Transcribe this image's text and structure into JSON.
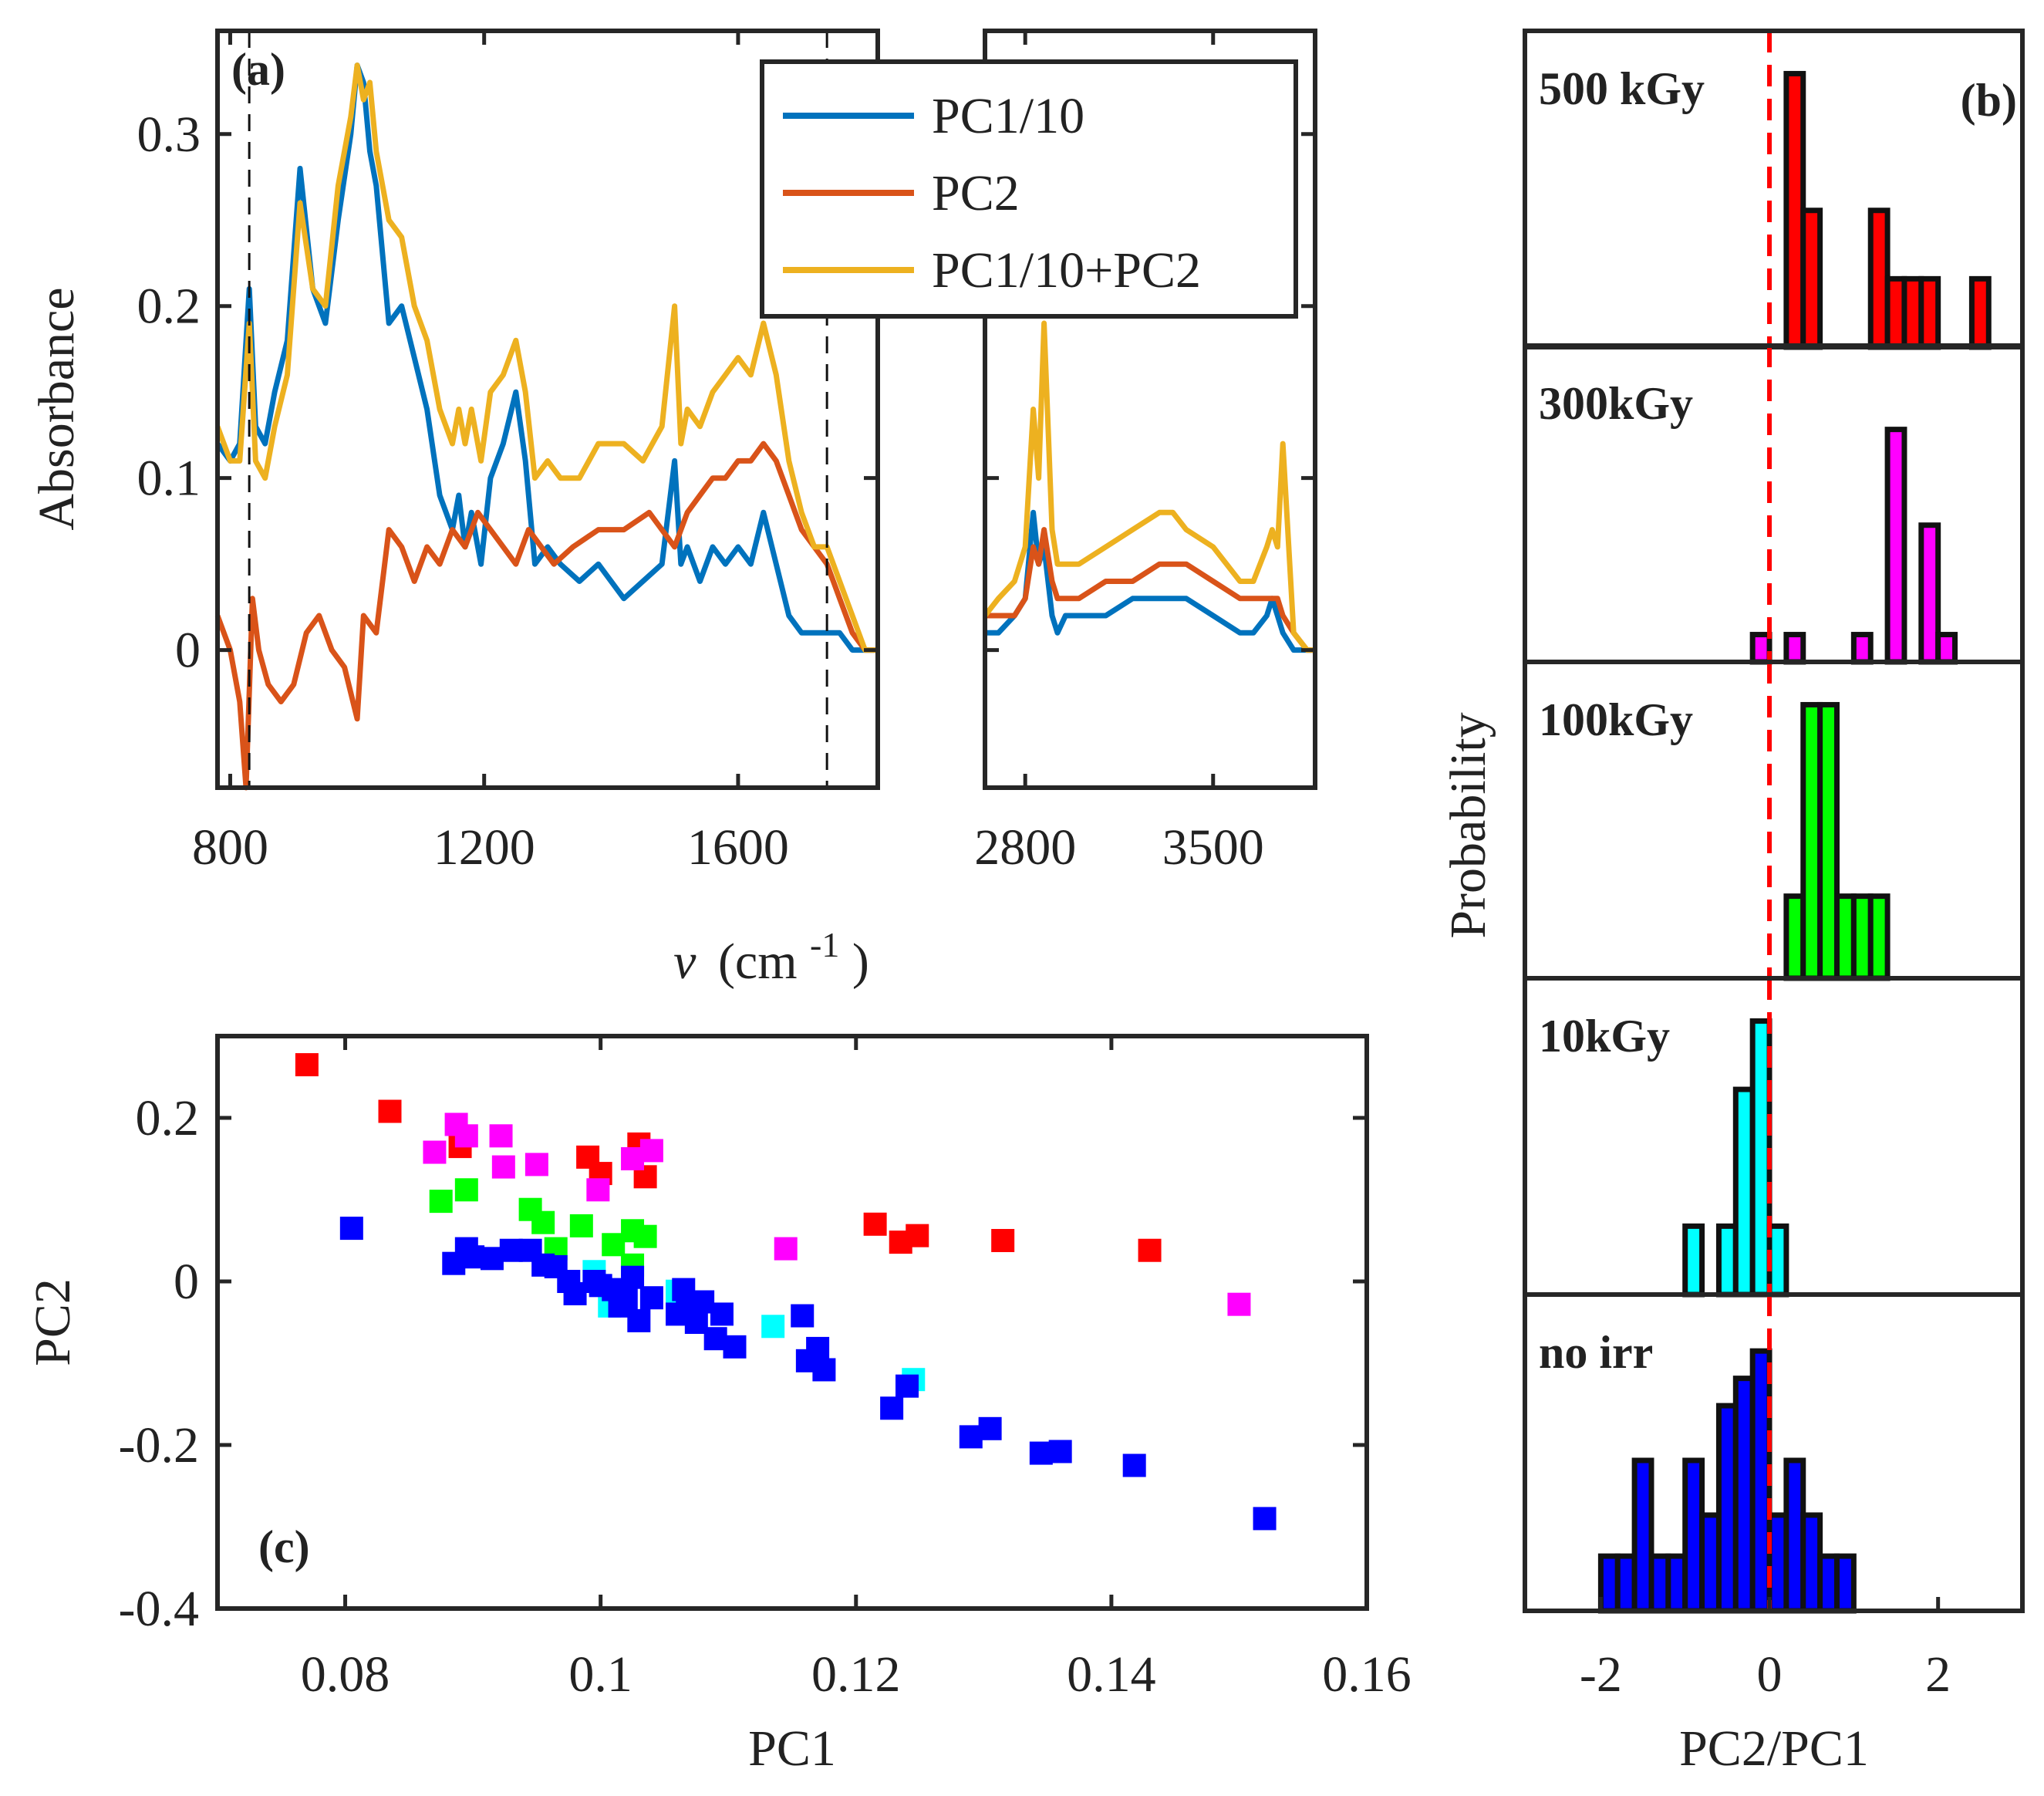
{
  "colors": {
    "pc1": "#0072BD",
    "pc2": "#D95319",
    "sum": "#EDB120",
    "500kGy": "#FF0000",
    "300kGy": "#FF00FF",
    "100kGy": "#00FF00",
    "10kGy": "#00FFFF",
    "noirr": "#0000FF",
    "frame": "#262626"
  },
  "chart_data": [
    {
      "id": "a",
      "type": "line",
      "panel_label": "(a)",
      "ylabel": "Absorbance",
      "xlabel_symbol": "ν",
      "xlabel_unit": "(cm",
      "xlabel_exp": "-1",
      "xlabel_close": ")",
      "ylim": [
        -0.08,
        0.36
      ],
      "xlim_left": [
        780,
        1820
      ],
      "xlim_right": [
        2650,
        3880
      ],
      "yticks": [
        0,
        0.1,
        0.2,
        0.3
      ],
      "ytick_labels": [
        "0",
        "0.1",
        "0.2",
        "0.3"
      ],
      "xticks_left": [
        800,
        1200,
        1600
      ],
      "xtick_labels_left": [
        "800",
        "1200",
        "1600"
      ],
      "xticks_right": [
        2800,
        3500
      ],
      "xtick_labels_right": [
        "2800",
        "3500"
      ],
      "vlines": [
        830,
        1740
      ],
      "legend_placement": "top-right",
      "series": [
        {
          "name": "PC1/10",
          "color_key": "pc1",
          "x_left": [
            780,
            800,
            815,
            830,
            840,
            855,
            870,
            890,
            910,
            930,
            950,
            970,
            990,
            1000,
            1010,
            1020,
            1030,
            1050,
            1070,
            1090,
            1110,
            1130,
            1150,
            1160,
            1170,
            1180,
            1195,
            1210,
            1230,
            1250,
            1265,
            1280,
            1300,
            1320,
            1350,
            1380,
            1420,
            1450,
            1480,
            1500,
            1510,
            1520,
            1540,
            1560,
            1580,
            1600,
            1620,
            1640,
            1660,
            1680,
            1700,
            1720,
            1740,
            1760,
            1780,
            1800,
            1820
          ],
          "y_left": [
            0.12,
            0.11,
            0.12,
            0.21,
            0.13,
            0.12,
            0.15,
            0.18,
            0.28,
            0.21,
            0.19,
            0.25,
            0.3,
            0.34,
            0.33,
            0.29,
            0.27,
            0.19,
            0.2,
            0.17,
            0.14,
            0.09,
            0.07,
            0.09,
            0.06,
            0.08,
            0.05,
            0.1,
            0.12,
            0.15,
            0.11,
            0.05,
            0.06,
            0.05,
            0.04,
            0.05,
            0.03,
            0.04,
            0.05,
            0.11,
            0.05,
            0.06,
            0.04,
            0.06,
            0.05,
            0.06,
            0.05,
            0.08,
            0.05,
            0.02,
            0.01,
            0.01,
            0.01,
            0.01,
            0.0,
            0.0,
            0.0
          ],
          "x_right": [
            2650,
            2700,
            2760,
            2800,
            2830,
            2850,
            2870,
            2900,
            2920,
            2950,
            3000,
            3100,
            3200,
            3300,
            3350,
            3400,
            3500,
            3600,
            3650,
            3700,
            3720,
            3740,
            3760,
            3800,
            3850,
            3880
          ],
          "y_right": [
            0.01,
            0.01,
            0.02,
            0.03,
            0.08,
            0.05,
            0.06,
            0.02,
            0.01,
            0.02,
            0.02,
            0.02,
            0.03,
            0.03,
            0.03,
            0.03,
            0.02,
            0.01,
            0.01,
            0.02,
            0.03,
            0.02,
            0.01,
            0.0,
            0.0,
            0.0
          ]
        },
        {
          "name": "PC2",
          "color_key": "pc2",
          "x_left": [
            780,
            800,
            815,
            825,
            835,
            845,
            860,
            880,
            900,
            920,
            940,
            960,
            980,
            1000,
            1010,
            1030,
            1050,
            1070,
            1090,
            1110,
            1130,
            1150,
            1170,
            1190,
            1210,
            1230,
            1250,
            1270,
            1290,
            1310,
            1340,
            1380,
            1420,
            1460,
            1500,
            1520,
            1540,
            1560,
            1580,
            1600,
            1620,
            1640,
            1660,
            1680,
            1700,
            1720,
            1740,
            1760,
            1780,
            1800,
            1820
          ],
          "y_left": [
            0.02,
            0.0,
            -0.03,
            -0.08,
            0.03,
            0.0,
            -0.02,
            -0.03,
            -0.02,
            0.01,
            0.02,
            0.0,
            -0.01,
            -0.04,
            0.02,
            0.01,
            0.07,
            0.06,
            0.04,
            0.06,
            0.05,
            0.07,
            0.06,
            0.08,
            0.07,
            0.06,
            0.05,
            0.07,
            0.06,
            0.05,
            0.06,
            0.07,
            0.07,
            0.08,
            0.06,
            0.08,
            0.09,
            0.1,
            0.1,
            0.11,
            0.11,
            0.12,
            0.11,
            0.09,
            0.07,
            0.06,
            0.05,
            0.03,
            0.01,
            0.0,
            0.0
          ],
          "x_right": [
            2650,
            2700,
            2760,
            2800,
            2830,
            2850,
            2870,
            2900,
            2920,
            2950,
            3000,
            3100,
            3200,
            3300,
            3350,
            3400,
            3500,
            3600,
            3650,
            3700,
            3720,
            3740,
            3760,
            3800,
            3850,
            3880
          ],
          "y_right": [
            0.02,
            0.02,
            0.02,
            0.03,
            0.06,
            0.05,
            0.07,
            0.04,
            0.03,
            0.03,
            0.03,
            0.04,
            0.04,
            0.05,
            0.05,
            0.05,
            0.04,
            0.03,
            0.03,
            0.03,
            0.03,
            0.03,
            0.02,
            0.01,
            0.0,
            0.0
          ]
        },
        {
          "name": "PC1/10+PC2",
          "color_key": "sum",
          "x_left": [
            780,
            800,
            815,
            830,
            840,
            855,
            870,
            890,
            910,
            930,
            950,
            970,
            990,
            1000,
            1010,
            1020,
            1030,
            1050,
            1070,
            1090,
            1110,
            1130,
            1150,
            1160,
            1170,
            1180,
            1195,
            1210,
            1230,
            1250,
            1265,
            1280,
            1300,
            1320,
            1350,
            1380,
            1420,
            1450,
            1480,
            1500,
            1510,
            1520,
            1540,
            1560,
            1580,
            1600,
            1620,
            1640,
            1660,
            1680,
            1700,
            1720,
            1740,
            1760,
            1780,
            1800,
            1820
          ],
          "y_left": [
            0.13,
            0.11,
            0.11,
            0.19,
            0.11,
            0.1,
            0.13,
            0.16,
            0.26,
            0.21,
            0.2,
            0.27,
            0.31,
            0.34,
            0.32,
            0.33,
            0.29,
            0.25,
            0.24,
            0.2,
            0.18,
            0.14,
            0.12,
            0.14,
            0.12,
            0.14,
            0.11,
            0.15,
            0.16,
            0.18,
            0.15,
            0.1,
            0.11,
            0.1,
            0.1,
            0.12,
            0.12,
            0.11,
            0.13,
            0.2,
            0.12,
            0.14,
            0.13,
            0.15,
            0.16,
            0.17,
            0.16,
            0.19,
            0.16,
            0.11,
            0.08,
            0.06,
            0.06,
            0.04,
            0.02,
            0.0,
            0.0
          ],
          "x_right": [
            2650,
            2700,
            2760,
            2800,
            2830,
            2850,
            2870,
            2900,
            2920,
            2950,
            3000,
            3100,
            3200,
            3300,
            3350,
            3400,
            3500,
            3600,
            3650,
            3700,
            3720,
            3740,
            3760,
            3800,
            3850,
            3880
          ],
          "y_right": [
            0.02,
            0.03,
            0.04,
            0.06,
            0.14,
            0.1,
            0.19,
            0.07,
            0.05,
            0.05,
            0.05,
            0.06,
            0.07,
            0.08,
            0.08,
            0.07,
            0.06,
            0.04,
            0.04,
            0.06,
            0.07,
            0.06,
            0.12,
            0.01,
            0.0,
            0.0
          ]
        }
      ]
    },
    {
      "id": "b",
      "type": "bar",
      "panel_label": "(b)",
      "ylabel": "Probability",
      "xlabel": "PC2/PC1",
      "xlim": [
        -2.9,
        3.0
      ],
      "xticks": [
        -2,
        0,
        2
      ],
      "xtick_labels": [
        "-2",
        "0",
        "2"
      ],
      "bin_width": 0.2,
      "dashed_line_x": 0,
      "panels": [
        {
          "label": "500 kGy",
          "color_key": "500kGy",
          "ymax": 0.22,
          "centers": [
            0.3,
            0.5,
            1.3,
            1.5,
            1.7,
            1.9,
            2.5
          ],
          "values": [
            0.2,
            0.1,
            0.1,
            0.05,
            0.05,
            0.05,
            0.05
          ]
        },
        {
          "label": "300kGy",
          "color_key": "300kGy",
          "ymax": 0.22,
          "centers": [
            -0.1,
            0.3,
            1.1,
            1.5,
            1.9,
            2.1
          ],
          "values": [
            0.02,
            0.02,
            0.02,
            0.17,
            0.1,
            0.02
          ]
        },
        {
          "label": "100kGy",
          "color_key": "100kGy",
          "ymax": 0.22,
          "centers": [
            0.3,
            0.5,
            0.7,
            0.9,
            1.1,
            1.3
          ],
          "values": [
            0.06,
            0.2,
            0.2,
            0.06,
            0.06,
            0.06
          ]
        },
        {
          "label": "10kGy",
          "color_key": "10kGy",
          "ymax": 0.22,
          "centers": [
            -0.9,
            -0.5,
            -0.3,
            -0.1,
            0.1
          ],
          "values": [
            0.05,
            0.05,
            0.15,
            0.2,
            0.05
          ]
        },
        {
          "label": "no irr",
          "color_key": "noirr",
          "ymax": 0.22,
          "centers": [
            -1.9,
            -1.7,
            -1.5,
            -1.3,
            -1.1,
            -0.9,
            -0.7,
            -0.5,
            -0.3,
            -0.1,
            0.1,
            0.3,
            0.5,
            0.7,
            0.9
          ],
          "values": [
            0.04,
            0.04,
            0.11,
            0.04,
            0.04,
            0.11,
            0.07,
            0.15,
            0.17,
            0.19,
            0.07,
            0.11,
            0.07,
            0.04,
            0.04
          ]
        }
      ]
    },
    {
      "id": "c",
      "type": "scatter",
      "panel_label": "(c)",
      "xlabel": "PC1",
      "ylabel": "PC2",
      "xlim": [
        0.07,
        0.16
      ],
      "ylim": [
        -0.4,
        0.3
      ],
      "xticks": [
        0.08,
        0.1,
        0.12,
        0.14,
        0.16
      ],
      "xtick_labels": [
        "0.08",
        "0.1",
        "0.12",
        "0.14",
        "0.16"
      ],
      "yticks": [
        -0.4,
        -0.2,
        0,
        0.2
      ],
      "ytick_labels": [
        "-0.4",
        "-0.2",
        "0",
        "0.2"
      ],
      "series": [
        {
          "color_key": "500kGy",
          "points": [
            [
              0.077,
              0.265
            ],
            [
              0.0835,
              0.208
            ],
            [
              0.089,
              0.165
            ],
            [
              0.099,
              0.152
            ],
            [
              0.1,
              0.132
            ],
            [
              0.103,
              0.168
            ],
            [
              0.1035,
              0.128
            ],
            [
              0.1215,
              0.07
            ],
            [
              0.1235,
              0.048
            ],
            [
              0.1248,
              0.056
            ],
            [
              0.1315,
              0.05
            ],
            [
              0.143,
              0.038
            ]
          ]
        },
        {
          "color_key": "300kGy",
          "points": [
            [
              0.087,
              0.158
            ],
            [
              0.0887,
              0.192
            ],
            [
              0.0895,
              0.178
            ],
            [
              0.0922,
              0.178
            ],
            [
              0.0924,
              0.14
            ],
            [
              0.095,
              0.143
            ],
            [
              0.0998,
              0.112
            ],
            [
              0.1025,
              0.15
            ],
            [
              0.104,
              0.16
            ],
            [
              0.1145,
              0.04
            ],
            [
              0.15,
              -0.028
            ]
          ]
        },
        {
          "color_key": "100kGy",
          "points": [
            [
              0.0875,
              0.098
            ],
            [
              0.0895,
              0.112
            ],
            [
              0.0945,
              0.088
            ],
            [
              0.0955,
              0.072
            ],
            [
              0.0965,
              0.04
            ],
            [
              0.0985,
              0.068
            ],
            [
              0.101,
              0.045
            ],
            [
              0.1025,
              0.062
            ],
            [
              0.1035,
              0.055
            ],
            [
              0.1025,
              0.02
            ]
          ]
        },
        {
          "color_key": "10kGy",
          "points": [
            [
              0.0995,
              0.012
            ],
            [
              0.1007,
              -0.03
            ],
            [
              0.106,
              -0.012
            ],
            [
              0.1135,
              -0.055
            ],
            [
              0.1245,
              -0.12
            ]
          ]
        },
        {
          "color_key": "noirr",
          "points": [
            [
              0.0805,
              0.065
            ],
            [
              0.0885,
              0.022
            ],
            [
              0.0895,
              0.04
            ],
            [
              0.09,
              0.03
            ],
            [
              0.0915,
              0.028
            ],
            [
              0.093,
              0.038
            ],
            [
              0.0945,
              0.038
            ],
            [
              0.0955,
              0.02
            ],
            [
              0.0965,
              0.018
            ],
            [
              0.0975,
              0.0
            ],
            [
              0.098,
              -0.015
            ],
            [
              0.0995,
              0.0
            ],
            [
              0.1,
              -0.005
            ],
            [
              0.101,
              -0.01
            ],
            [
              0.1015,
              -0.03
            ],
            [
              0.102,
              -0.02
            ],
            [
              0.1025,
              0.005
            ],
            [
              0.103,
              -0.048
            ],
            [
              0.104,
              -0.02
            ],
            [
              0.106,
              -0.04
            ],
            [
              0.1065,
              -0.01
            ],
            [
              0.1068,
              -0.032
            ],
            [
              0.1075,
              -0.05
            ],
            [
              0.108,
              -0.025
            ],
            [
              0.109,
              -0.07
            ],
            [
              0.1095,
              -0.04
            ],
            [
              0.1105,
              -0.08
            ],
            [
              0.1158,
              -0.042
            ],
            [
              0.1162,
              -0.097
            ],
            [
              0.117,
              -0.082
            ],
            [
              0.1175,
              -0.108
            ],
            [
              0.1228,
              -0.155
            ],
            [
              0.124,
              -0.128
            ],
            [
              0.129,
              -0.19
            ],
            [
              0.1305,
              -0.18
            ],
            [
              0.1345,
              -0.21
            ],
            [
              0.136,
              -0.208
            ],
            [
              0.1418,
              -0.225
            ],
            [
              0.152,
              -0.29
            ]
          ]
        }
      ]
    }
  ]
}
